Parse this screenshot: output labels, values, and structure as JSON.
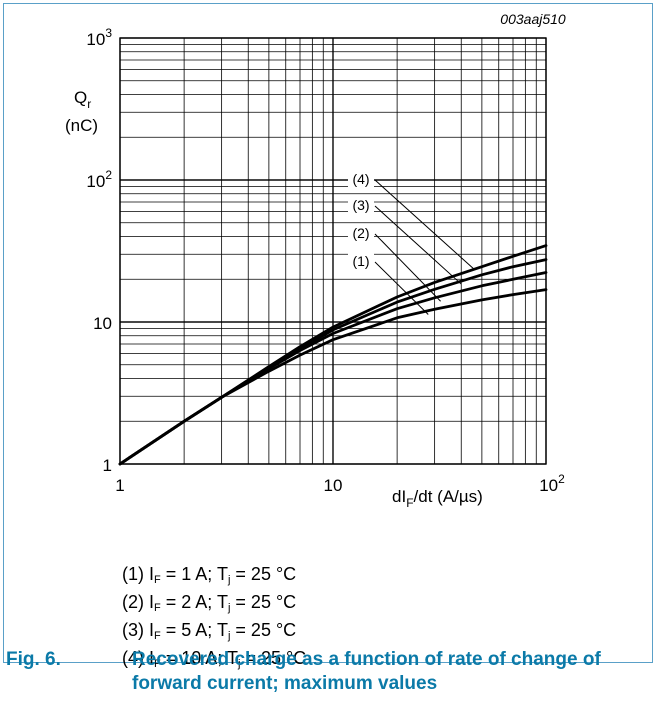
{
  "figure_id": "003aaj510",
  "chart_data": {
    "type": "line",
    "x_scale": "log",
    "y_scale": "log",
    "xlim": [
      1,
      100
    ],
    "ylim": [
      1,
      1000
    ],
    "x_ticks": [
      {
        "value": 1,
        "base": "1",
        "exp": ""
      },
      {
        "value": 10,
        "base": "10",
        "exp": ""
      },
      {
        "value": 100,
        "base": "10",
        "exp": "2"
      }
    ],
    "y_ticks": [
      {
        "value": 1,
        "base": "1",
        "exp": ""
      },
      {
        "value": 10,
        "base": "10",
        "exp": ""
      },
      {
        "value": 100,
        "base": "10",
        "exp": "2"
      },
      {
        "value": 1000,
        "base": "10",
        "exp": "3"
      }
    ],
    "xlabel": {
      "pre": "dI",
      "sub": "F",
      "post": "/dt (A/µs)"
    },
    "ylabel": {
      "sym": "Q",
      "sub": "r",
      "unit": "(nC)"
    },
    "grid": true,
    "series": [
      {
        "name": "(1)",
        "x": [
          1,
          2,
          3,
          5,
          7,
          10,
          20,
          30,
          50,
          70,
          100
        ],
        "y": [
          1,
          2,
          2.95,
          4.5,
          5.85,
          7.5,
          10.7,
          12.3,
          14.3,
          15.6,
          16.9
        ]
      },
      {
        "name": "(2)",
        "x": [
          1,
          2,
          3,
          5,
          7,
          10,
          20,
          30,
          50,
          70,
          100
        ],
        "y": [
          1,
          2,
          2.95,
          4.7,
          6.3,
          8.3,
          12.4,
          14.8,
          18.0,
          20.0,
          22.3
        ]
      },
      {
        "name": "(3)",
        "x": [
          1,
          2,
          3,
          5,
          7,
          10,
          20,
          30,
          50,
          70,
          100
        ],
        "y": [
          1,
          2,
          2.95,
          4.8,
          6.5,
          8.8,
          13.8,
          17.0,
          21.5,
          24.5,
          27.5
        ]
      },
      {
        "name": "(4)",
        "x": [
          1,
          2,
          3,
          5,
          7,
          10,
          20,
          30,
          50,
          70,
          100
        ],
        "y": [
          1,
          2,
          2.95,
          4.85,
          6.7,
          9.2,
          15.0,
          19.0,
          24.5,
          29.0,
          34.5
        ]
      }
    ],
    "annotations": [
      {
        "label": "(4)",
        "x": 46,
        "y": 23.5
      },
      {
        "label": "(3)",
        "x": 40,
        "y": 18.5
      },
      {
        "label": "(2)",
        "x": 32,
        "y": 14.0
      },
      {
        "label": "(1)",
        "x": 28,
        "y": 11.3
      }
    ]
  },
  "legend": [
    {
      "n": "(1)",
      "i": "I",
      "isub": "F",
      "iv": " = 1 A; T",
      "tsub": "j",
      "tv": " = 25 °C"
    },
    {
      "n": "(2)",
      "i": "I",
      "isub": "F",
      "iv": " = 2 A; T",
      "tsub": "j",
      "tv": " = 25 °C"
    },
    {
      "n": "(3)",
      "i": "I",
      "isub": "F",
      "iv": " = 5 A; T",
      "tsub": "j",
      "tv": " = 25 °C"
    },
    {
      "n": "(4)",
      "i": "I",
      "isub": "F",
      "iv": " = 10 A; T",
      "tsub": "j",
      "tv": " = 25 °C"
    }
  ],
  "caption": {
    "number": "Fig. 6.",
    "title": "Recovered charge as a function of rate of change of forward current; maximum values"
  }
}
